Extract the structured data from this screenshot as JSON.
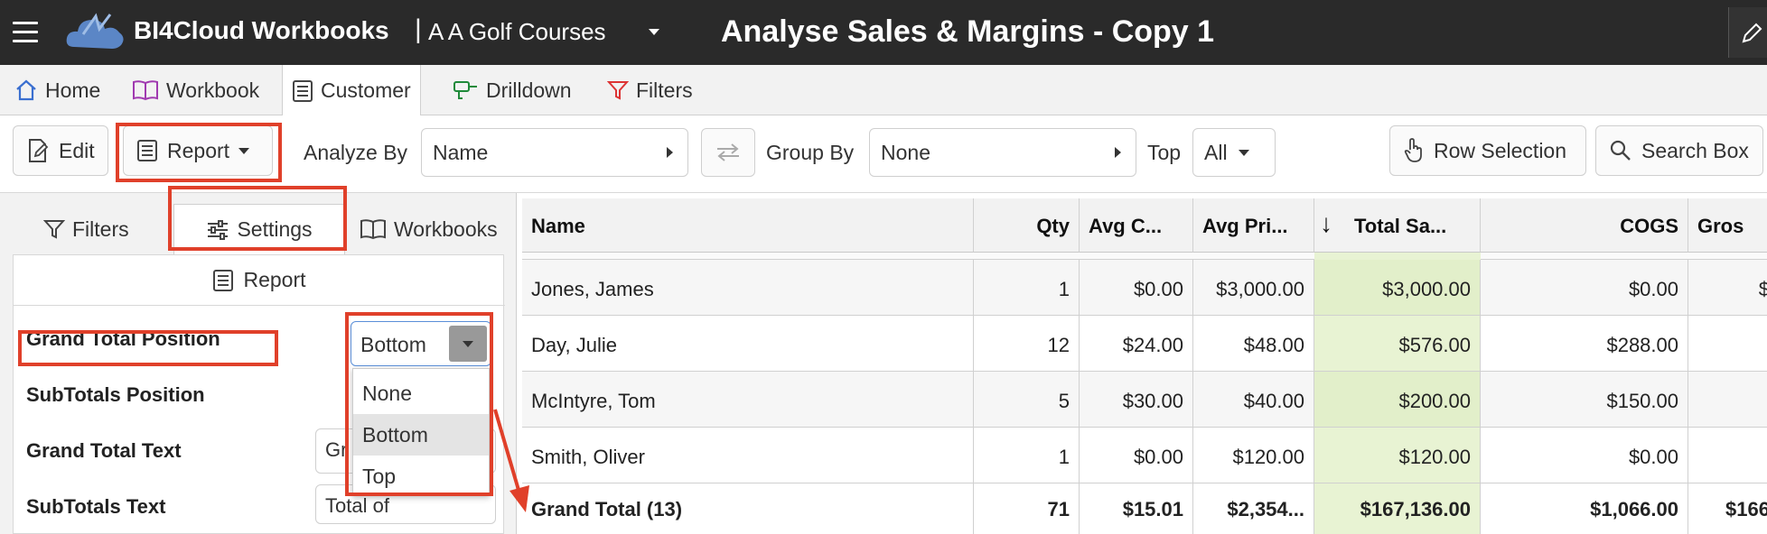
{
  "header": {
    "brand": "BI4Cloud Workbooks",
    "separator": "|",
    "company": "A A Golf Courses",
    "title": "Analyse Sales & Margins  - Copy 1"
  },
  "ribbon_tabs": [
    {
      "label": "Home",
      "icon": "home-icon"
    },
    {
      "label": "Workbook",
      "icon": "book-icon"
    },
    {
      "label": "Customer",
      "icon": "list-icon",
      "active": true
    },
    {
      "label": "Drilldown",
      "icon": "drill-icon"
    },
    {
      "label": "Filters",
      "icon": "filter-icon"
    }
  ],
  "toolbar": {
    "edit_label": "Edit",
    "report_label": "Report",
    "analyze_by_label": "Analyze By",
    "analyze_by_value": "Name",
    "group_by_label": "Group By",
    "group_by_value": "None",
    "top_label": "Top",
    "top_value": "All",
    "row_selection_label": "Row Selection",
    "search_box_label": "Search Box"
  },
  "left_panel": {
    "tabs": [
      {
        "label": "Filters",
        "icon": "filter-icon"
      },
      {
        "label": "Settings",
        "icon": "sliders-icon",
        "active": true
      },
      {
        "label": "Workbooks",
        "icon": "book-icon"
      }
    ],
    "section_title": "Report",
    "settings": [
      {
        "label": "Grand Total Position",
        "value": "Bottom"
      },
      {
        "label": "SubTotals Position",
        "value": ""
      },
      {
        "label": "Grand Total Text",
        "value": "Gr"
      },
      {
        "label": "SubTotals Text",
        "value": "Total of"
      }
    ],
    "dropdown_options": [
      "None",
      "Bottom",
      "Top"
    ],
    "dropdown_selected": "Bottom"
  },
  "grid": {
    "columns": [
      "Name",
      "Qty",
      "Avg C...",
      "Avg Pri...",
      "Total Sa...",
      "COGS",
      "Gros"
    ],
    "rows": [
      [
        "Jones, James",
        "1",
        "$0.00",
        "$3,000.00",
        "$3,000.00",
        "$0.00",
        "$"
      ],
      [
        "Day, Julie",
        "12",
        "$24.00",
        "$48.00",
        "$576.00",
        "$288.00",
        ""
      ],
      [
        "McIntyre, Tom",
        "5",
        "$30.00",
        "$40.00",
        "$200.00",
        "$150.00",
        ""
      ],
      [
        "Smith, Oliver",
        "1",
        "$0.00",
        "$120.00",
        "$120.00",
        "$0.00",
        ""
      ]
    ],
    "total_row": [
      "Grand Total (13)",
      "71",
      "$15.01",
      "$2,354...",
      "$167,136.00",
      "$1,066.00",
      "$166"
    ]
  },
  "colors": {
    "header_bg": "#2a2a2a",
    "highlight_col": "#e8f3d3",
    "annotation_red": "#e0402a"
  }
}
